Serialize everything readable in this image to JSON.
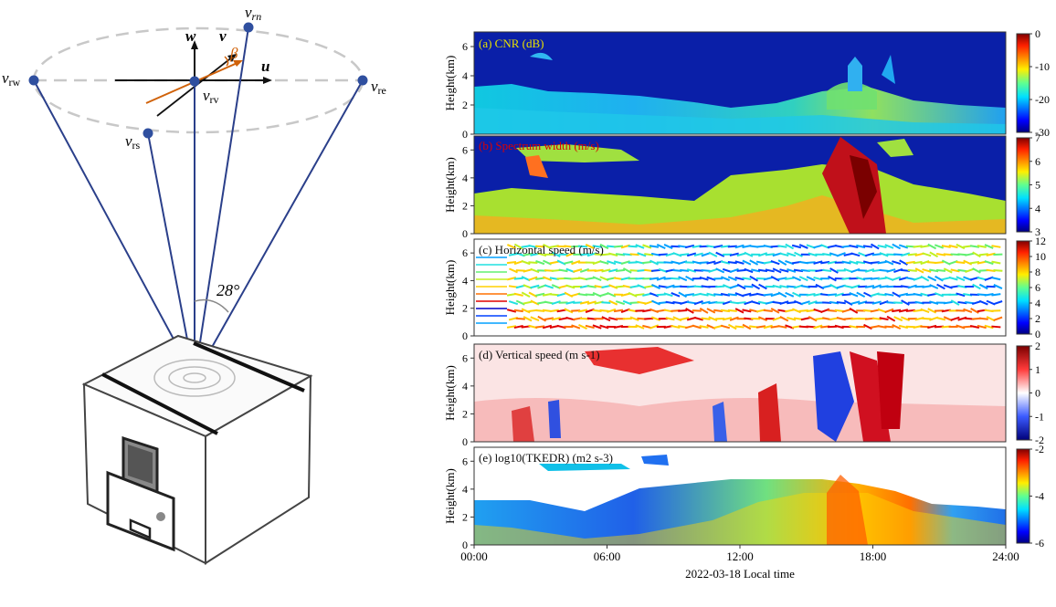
{
  "diagram": {
    "labels": {
      "v_rn": "v",
      "v_rn_sub": "rn",
      "v_rw": "v",
      "v_rw_sub": "rw",
      "v_re": "v",
      "v_re_sub": "re",
      "v_rs": "v",
      "v_rs_sub": "rs",
      "v_rv": "v",
      "v_rv_sub": "rv",
      "w": "w",
      "v": "v",
      "u": "u",
      "beta": "β",
      "angle": "28°"
    }
  },
  "panels": [
    {
      "id": "a",
      "label": "(a) CNR (dB)",
      "label_color": "#e8e000",
      "ylabel": "Height(km)",
      "yticks": [
        "0",
        "2",
        "4",
        "6"
      ],
      "cbar_ticks": [
        "0",
        "-10",
        "-20",
        "-30"
      ],
      "cbar": "jet"
    },
    {
      "id": "b",
      "label": "(b) Spectrum width (m/s)",
      "label_color": "#dd0000",
      "ylabel": "Height(km)",
      "yticks": [
        "0",
        "2",
        "4",
        "6"
      ],
      "cbar_ticks": [
        "7",
        "6",
        "5",
        "4",
        "3"
      ],
      "cbar": "jet"
    },
    {
      "id": "c",
      "label": "(c) Horizontal speed (m/s)",
      "label_color": "#111111",
      "ylabel": "Height(km)",
      "yticks": [
        "0",
        "2",
        "4",
        "6"
      ],
      "cbar_ticks": [
        "12",
        "10",
        "8",
        "6",
        "4",
        "2",
        "0"
      ],
      "cbar": "jet"
    },
    {
      "id": "d",
      "label": "(d) Vertical speed (m s-1)",
      "label_color": "#111111",
      "ylabel": "Height(km)",
      "yticks": [
        "0",
        "2",
        "4",
        "6"
      ],
      "cbar_ticks": [
        "2",
        "1",
        "0",
        "-1",
        "-2"
      ],
      "cbar": "bwr"
    },
    {
      "id": "e",
      "label": "(e) log10(TKEDR) (m2 s-3)",
      "label_color": "#111111",
      "ylabel": "Height(km)",
      "yticks": [
        "0",
        "2",
        "4",
        "6"
      ],
      "cbar_ticks": [
        "-2",
        "-4",
        "-6"
      ],
      "cbar": "jet"
    }
  ],
  "xaxis": {
    "ticks": [
      "00:00",
      "06:00",
      "12:00",
      "18:00",
      "24:00"
    ],
    "label": "2022-03-18 Local time"
  },
  "chart_data": [
    {
      "type": "heatmap",
      "title": "(a) CNR (dB)",
      "xlabel": "2022-03-18 Local time",
      "ylabel": "Height(km)",
      "x_range": [
        "00:00",
        "24:00"
      ],
      "ylim": [
        0,
        7
      ],
      "color_range": [
        -30,
        0
      ]
    },
    {
      "type": "heatmap",
      "title": "(b) Spectrum width (m/s)",
      "xlabel": "2022-03-18 Local time",
      "ylabel": "Height(km)",
      "x_range": [
        "00:00",
        "24:00"
      ],
      "ylim": [
        0,
        7
      ],
      "color_range": [
        3,
        7
      ]
    },
    {
      "type": "heatmap",
      "title": "(c) Horizontal speed (m/s)",
      "xlabel": "2022-03-18 Local time",
      "ylabel": "Height(km)",
      "x_range": [
        "00:00",
        "24:00"
      ],
      "ylim": [
        0,
        7
      ],
      "color_range": [
        0,
        13
      ]
    },
    {
      "type": "heatmap",
      "title": "(d) Vertical speed (m s-1)",
      "xlabel": "2022-03-18 Local time",
      "ylabel": "Height(km)",
      "x_range": [
        "00:00",
        "24:00"
      ],
      "ylim": [
        0,
        7
      ],
      "color_range": [
        -2,
        2
      ]
    },
    {
      "type": "heatmap",
      "title": "(e) log10(TKEDR) (m2 s-3)",
      "xlabel": "2022-03-18 Local time",
      "ylabel": "Height(km)",
      "x_range": [
        "00:00",
        "24:00"
      ],
      "ylim": [
        0,
        7
      ],
      "color_range": [
        -6,
        -1
      ]
    }
  ]
}
